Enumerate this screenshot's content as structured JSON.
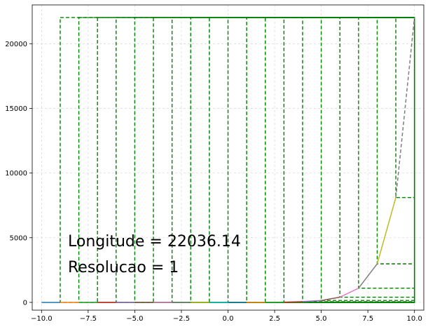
{
  "chart_data": {
    "type": "line",
    "title": "",
    "xlabel": "",
    "ylabel": "",
    "xlim": [
      -10.5,
      10.5
    ],
    "ylim": [
      -600,
      23000
    ],
    "grid": true,
    "x_ticks": [
      -10.0,
      -7.5,
      -5.0,
      -2.5,
      0.0,
      2.5,
      5.0,
      7.5,
      10.0
    ],
    "x_tick_labels": [
      "−10.0",
      "−7.5",
      "−5.0",
      "−2.5",
      "0.0",
      "2.5",
      "5.0",
      "7.5",
      "10.0"
    ],
    "y_ticks": [
      0,
      5000,
      10000,
      15000,
      20000
    ],
    "y_tick_labels": [
      "0",
      "5000",
      "10000",
      "15000",
      "20000"
    ],
    "curve_segments": [
      {
        "x": [
          -10,
          -9
        ],
        "y": [
          0,
          0
        ],
        "color": "#1f77b4"
      },
      {
        "x": [
          -9,
          -8
        ],
        "y": [
          0,
          0
        ],
        "color": "#ff7f0e"
      },
      {
        "x": [
          -8,
          -7
        ],
        "y": [
          0,
          0
        ],
        "color": "#2ca02c"
      },
      {
        "x": [
          -7,
          -6
        ],
        "y": [
          0,
          0
        ],
        "color": "#d62728"
      },
      {
        "x": [
          -6,
          -5
        ],
        "y": [
          0,
          0
        ],
        "color": "#9467bd"
      },
      {
        "x": [
          -5,
          -4
        ],
        "y": [
          0,
          0
        ],
        "color": "#8c564b"
      },
      {
        "x": [
          -4,
          -3
        ],
        "y": [
          0,
          0
        ],
        "color": "#e377c2"
      },
      {
        "x": [
          -3,
          -2
        ],
        "y": [
          0,
          0
        ],
        "color": "#7f7f7f"
      },
      {
        "x": [
          -2,
          -1
        ],
        "y": [
          0,
          0
        ],
        "color": "#bcbd22"
      },
      {
        "x": [
          -1,
          0
        ],
        "y": [
          0,
          0
        ],
        "color": "#17becf"
      },
      {
        "x": [
          0,
          1
        ],
        "y": [
          0,
          3
        ],
        "color": "#1f77b4"
      },
      {
        "x": [
          1,
          2
        ],
        "y": [
          3,
          7
        ],
        "color": "#ff7f0e"
      },
      {
        "x": [
          2,
          3
        ],
        "y": [
          7,
          20
        ],
        "color": "#2ca02c"
      },
      {
        "x": [
          3,
          4
        ],
        "y": [
          20,
          55
        ],
        "color": "#d62728"
      },
      {
        "x": [
          4,
          5
        ],
        "y": [
          55,
          148
        ],
        "color": "#9467bd"
      },
      {
        "x": [
          5,
          6
        ],
        "y": [
          148,
          403
        ],
        "color": "#8c564b"
      },
      {
        "x": [
          6,
          7
        ],
        "y": [
          403,
          1097
        ],
        "color": "#e377c2"
      },
      {
        "x": [
          7,
          8
        ],
        "y": [
          1097,
          2981
        ],
        "color": "#7f7f7f"
      },
      {
        "x": [
          8,
          9
        ],
        "y": [
          2981,
          8103
        ],
        "color": "#bcbd22"
      }
    ],
    "dashed_tail": {
      "x": [
        9,
        10
      ],
      "y": [
        8103,
        22026
      ],
      "color": "#7f7f7f"
    },
    "rectangles": {
      "color": "#008000",
      "top": 22026,
      "x_right": 10,
      "x_left": [
        -9,
        -8,
        -7,
        -6,
        -5,
        -4,
        -3,
        -2,
        -1,
        0,
        1,
        2,
        3,
        4,
        5,
        6,
        7,
        8,
        9
      ],
      "y_low": [
        0,
        0,
        0,
        0,
        0,
        0,
        0,
        0,
        0,
        0,
        3,
        7,
        20,
        55,
        148,
        403,
        1097,
        2981,
        8103
      ]
    },
    "annotations": [
      {
        "text": "Longitude = 22036.14"
      },
      {
        "text": "Resolucao = 1"
      }
    ]
  }
}
